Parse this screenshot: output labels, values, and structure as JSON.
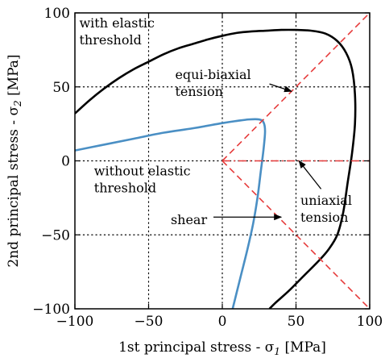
{
  "chart_data": {
    "type": "line",
    "xlabel": "1st principal stress - σ",
    "xlabel_sub": "1",
    "xlabel_unit": " [MPa]",
    "ylabel": "2nd principal stress - σ",
    "ylabel_sub": "2",
    "ylabel_unit": " [MPa]",
    "xlim": [
      -100,
      100
    ],
    "ylim": [
      -100,
      100
    ],
    "xticks": [
      -100,
      -50,
      0,
      50,
      100
    ],
    "yticks": [
      -100,
      -50,
      0,
      50,
      100
    ],
    "xtick_labels": [
      "−100",
      "−50",
      "0",
      "50",
      "100"
    ],
    "ytick_labels": [
      "−100",
      "−50",
      "0",
      "50",
      "100"
    ],
    "grid": "dotted at 0 and ±50",
    "series": [
      {
        "name": "with elastic threshold",
        "color": "#000000",
        "style": "solid",
        "x": [
          -100,
          -90,
          -80,
          -70,
          -60,
          -50,
          -40,
          -30,
          -20,
          -10,
          0,
          10,
          20,
          30,
          40,
          50,
          60,
          70,
          78,
          84,
          88,
          90,
          90,
          88,
          85,
          82,
          78,
          72,
          65,
          55,
          45,
          36,
          32
        ],
        "y": [
          32,
          41,
          49,
          56,
          62,
          67,
          72,
          76,
          79,
          82,
          84.5,
          86.5,
          87.5,
          88,
          88.5,
          88.5,
          88,
          86,
          81,
          73,
          62,
          45,
          25,
          5,
          -15,
          -35,
          -50,
          -60,
          -68,
          -78,
          -88,
          -96,
          -100
        ]
      },
      {
        "name": "without elastic threshold",
        "color": "#4a8fc4",
        "style": "solid",
        "x": [
          -100,
          -80,
          -60,
          -40,
          -20,
          0,
          10,
          18,
          25,
          28,
          29,
          28,
          26,
          24,
          21,
          17,
          13,
          10,
          7
        ],
        "y": [
          7,
          11,
          15,
          19,
          22,
          25.5,
          27,
          28,
          28,
          26,
          20,
          8,
          -8,
          -24,
          -42,
          -60,
          -76,
          -88,
          -100
        ]
      },
      {
        "name": "equi-biaxial tension",
        "color": "#e63c3c",
        "style": "dashed",
        "x": [
          0,
          100
        ],
        "y": [
          0,
          100
        ]
      },
      {
        "name": "uniaxial tension",
        "color": "#e63c3c",
        "style": "dashdot",
        "x": [
          0,
          100
        ],
        "y": [
          0,
          0
        ]
      },
      {
        "name": "shear",
        "color": "#e63c3c",
        "style": "dashed",
        "x": [
          0,
          100
        ],
        "y": [
          0,
          -100
        ]
      }
    ],
    "annotations": [
      {
        "lines": [
          "with elastic",
          "threshold"
        ],
        "x": -97,
        "y": 93
      },
      {
        "lines": [
          "equi-biaxial",
          "tension"
        ],
        "x": -32,
        "y": 58,
        "arrow_to": [
          47,
          47
        ],
        "arrow_from": [
          32,
          52
        ]
      },
      {
        "lines": [
          "without elastic",
          "threshold"
        ],
        "x": -87,
        "y": -7
      },
      {
        "lines": [
          "uniaxial",
          "tension"
        ],
        "x": 53,
        "y": -27,
        "arrow_to": [
          52,
          0
        ],
        "arrow_from": [
          67,
          -19
        ]
      },
      {
        "lines": [
          "shear"
        ],
        "x": -35,
        "y": -40,
        "arrow_to": [
          40,
          -38
        ],
        "arrow_from": [
          -6,
          -38
        ]
      }
    ]
  }
}
